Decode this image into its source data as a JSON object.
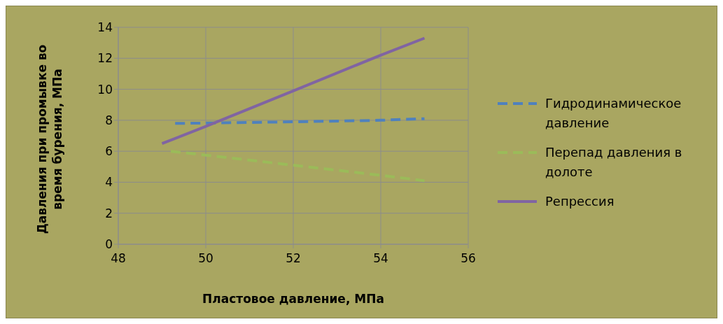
{
  "chart_data": {
    "type": "line",
    "xlabel": "Пластовое давление, МПа",
    "ylabel": "Давления при промывке во время бурения, МПа",
    "xlim": [
      48,
      56
    ],
    "xticks": [
      48,
      50,
      52,
      54,
      56
    ],
    "ylim": [
      0,
      14
    ],
    "yticks": [
      0,
      2,
      4,
      6,
      8,
      10,
      12,
      14
    ],
    "grid": true,
    "legend": "right",
    "marker": "none",
    "series": [
      {
        "name": "Гидродинамическое давление",
        "color": "#4f81bd",
        "line_style": "dashed",
        "x": [
          49.3,
          50,
          52,
          54,
          55
        ],
        "values": [
          7.8,
          7.82,
          7.9,
          8.0,
          8.1
        ]
      },
      {
        "name": "Перепад давления в долоте",
        "color": "#9bbb59",
        "line_style": "dashed",
        "x": [
          49.2,
          50,
          52,
          54,
          55
        ],
        "values": [
          6.0,
          5.75,
          5.1,
          4.45,
          4.1
        ]
      },
      {
        "name": "Репрессия",
        "color": "#8064a2",
        "line_style": "solid",
        "x": [
          49,
          50,
          52,
          54,
          55
        ],
        "values": [
          6.5,
          7.6,
          9.9,
          12.2,
          13.3
        ]
      }
    ]
  }
}
